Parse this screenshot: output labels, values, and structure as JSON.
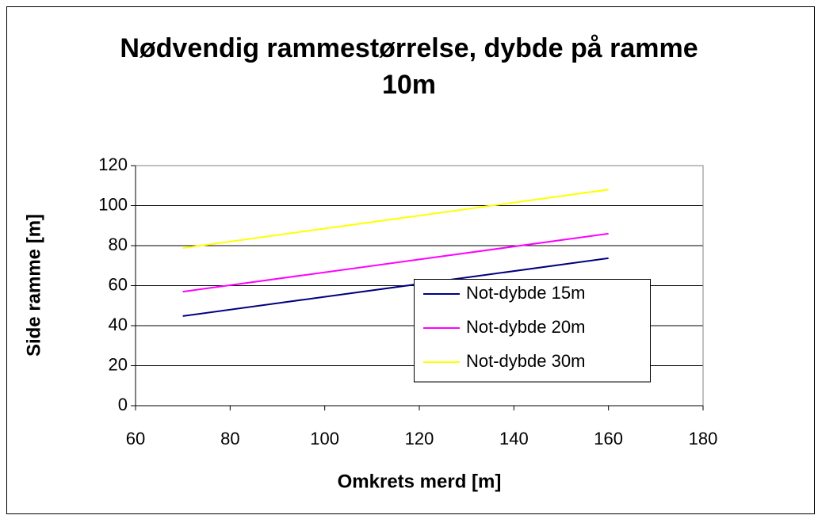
{
  "chart_data": {
    "type": "line",
    "title": "Nødvendig rammestørrelse, dybde på ramme 10m",
    "xlabel": "Omkrets merd [m]",
    "ylabel": "Side ramme [m]",
    "x": [
      70,
      160
    ],
    "series": [
      {
        "name": "Not-dybde 15m",
        "color": "#000080",
        "values": [
          44.8,
          73.7
        ]
      },
      {
        "name": "Not-dybde 20m",
        "color": "#ff00ff",
        "values": [
          57,
          86
        ]
      },
      {
        "name": "Not-dybde 30m",
        "color": "#ffff00",
        "values": [
          78.8,
          108
        ]
      }
    ],
    "xlim": [
      60,
      180
    ],
    "xticks": [
      60,
      80,
      100,
      120,
      140,
      160,
      180
    ],
    "ylim": [
      0,
      120
    ],
    "yticks": [
      0,
      20,
      40,
      60,
      80,
      100,
      120
    ],
    "grid": true,
    "legend": "right"
  }
}
